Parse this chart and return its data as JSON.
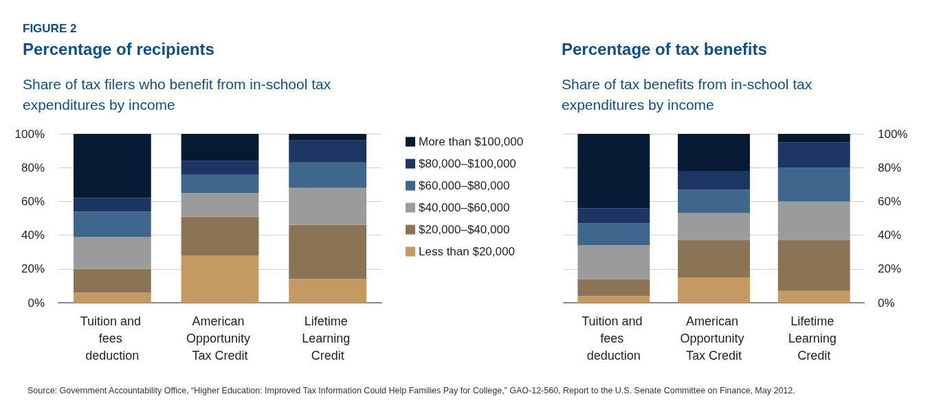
{
  "chart_data": [
    {
      "type": "bar",
      "title": "Percentage of recipients",
      "subtitle": "Share of tax filers who benefit from in-school tax expenditures by income",
      "annotations": [
        "FIGURE 2",
        "Source: Government Accountability Office, “Higher Education: Improved Tax Information Could Help Families Pay for College,” GAO-12-560, Report to the U.S. Senate Committee on Finance, May 2012."
      ],
      "categories": [
        "Tuition and fees deduction",
        "American Opportunity Tax Credit",
        "Lifetime Learning Credit"
      ],
      "stacked": true,
      "legend": "right",
      "grid": "y",
      "ylim": [
        0,
        100
      ],
      "yticks": [
        {
          "value": 0,
          "label": "0%"
        },
        {
          "value": 20,
          "label": "20%"
        },
        {
          "value": 40,
          "label": "40%"
        },
        {
          "value": 60,
          "label": "60%"
        },
        {
          "value": 80,
          "label": "80%"
        },
        {
          "value": 100,
          "label": "100%"
        }
      ],
      "series": [
        {
          "name": "Less than $20,000",
          "color": "#c49a62",
          "values": [
            6,
            28,
            14
          ]
        },
        {
          "name": "$20,000–$40,000",
          "color": "#8b7355",
          "values": [
            14,
            23,
            32
          ]
        },
        {
          "name": "$40,000–$60,000",
          "color": "#9b9b9b",
          "values": [
            19,
            14,
            22
          ]
        },
        {
          "name": "$60,000–$80,000",
          "color": "#3f668c",
          "values": [
            15,
            11,
            15
          ]
        },
        {
          "name": "$80,000–$100,000",
          "color": "#1c3563",
          "values": [
            8,
            8,
            13
          ]
        },
        {
          "name": "More than $100,000",
          "color": "#061a33",
          "values": [
            38,
            16,
            4
          ]
        }
      ]
    },
    {
      "type": "bar",
      "title": "Percentage of tax benefits",
      "subtitle": "Share of tax benefits from in-school tax expenditures by income",
      "categories": [
        "Tuition and fees deduction",
        "American Opportunity Tax Credit",
        "Lifetime Learning Credit"
      ],
      "stacked": true,
      "grid": "y",
      "ylim": [
        0,
        100
      ],
      "yticks": [
        {
          "value": 0,
          "label": "0%"
        },
        {
          "value": 20,
          "label": "20%"
        },
        {
          "value": 40,
          "label": "40%"
        },
        {
          "value": 60,
          "label": "60%"
        },
        {
          "value": 80,
          "label": "80%"
        },
        {
          "value": 100,
          "label": "100%"
        }
      ],
      "series": [
        {
          "color": "#c49a62",
          "values": [
            4,
            15,
            7
          ]
        },
        {
          "color": "#8b7355",
          "values": [
            10,
            22,
            30
          ]
        },
        {
          "color": "#9b9b9b",
          "values": [
            20,
            16,
            23
          ]
        },
        {
          "color": "#3f668c",
          "values": [
            13,
            14,
            20
          ]
        },
        {
          "color": "#1c3563",
          "values": [
            9,
            11,
            15
          ]
        },
        {
          "color": "#061a33",
          "values": [
            44,
            22,
            5
          ]
        }
      ]
    }
  ]
}
